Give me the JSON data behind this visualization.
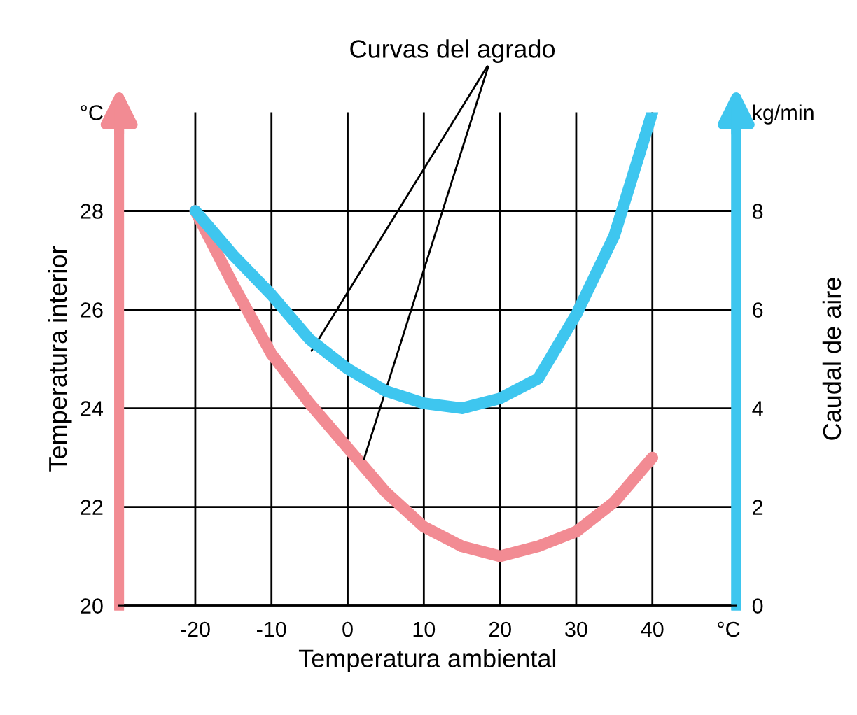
{
  "chart_data": {
    "type": "line",
    "xlabel": "Temperatura ambiental",
    "ylabel": "Temperatura interior",
    "y2label": "Caudal de aire",
    "annotations": [
      "Curvas del agrado"
    ],
    "x": [
      -20,
      -15,
      -10,
      -5,
      0,
      5,
      10,
      15,
      20,
      25,
      30,
      35,
      40
    ],
    "series": [
      {
        "color": "#f28b93",
        "values": [
          28,
          26.5,
          25.1,
          24.1,
          23.2,
          22.3,
          21.6,
          21.2,
          21.0,
          21.2,
          21.5,
          22.1,
          23.0
        ]
      },
      {
        "axis": "y2",
        "color": "#3ec6ef",
        "values": [
          8,
          7.1,
          6.3,
          5.4,
          4.8,
          4.35,
          4.1,
          4.0,
          4.2,
          4.6,
          5.9,
          7.5,
          10.0
        ]
      }
    ],
    "xlim": [
      -30,
      51
    ],
    "xticks": [
      -20,
      -10,
      0,
      10,
      20,
      30,
      40,
      {
        "value": 50,
        "label": "°C"
      }
    ],
    "ylim": [
      20,
      30
    ],
    "yticks": [
      20,
      22,
      24,
      26,
      28,
      {
        "value": 30,
        "label": "°C"
      }
    ],
    "y2lim": [
      0,
      10
    ],
    "y2ticks": [
      0,
      2,
      4,
      6,
      8,
      {
        "value": 10,
        "label": "kg/min"
      }
    ],
    "grid": true,
    "legend": false,
    "marker": "none",
    "line_style": "solid"
  }
}
